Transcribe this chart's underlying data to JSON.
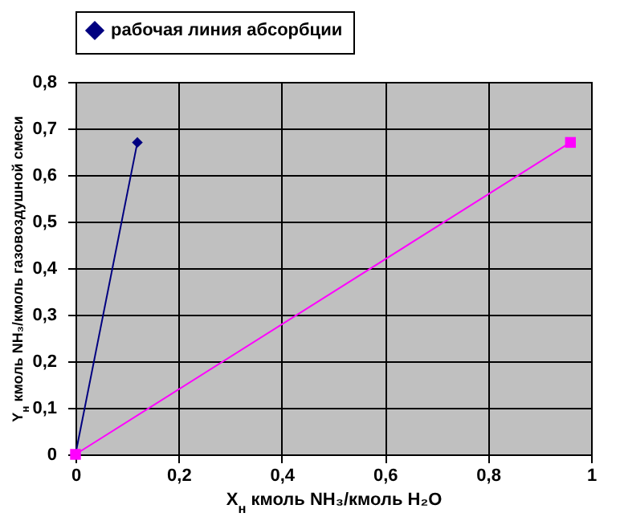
{
  "chart_data": {
    "type": "line",
    "xlabel": "X$_{н}$ кмоль NH₃/кмоль H₂O",
    "ylabel": "Y$_{н}$ кмоль NH₃/кмоль газовоздушной смеси",
    "series": [
      {
        "name": "рабочая линия абсорбции",
        "color": "#000080",
        "x": [
          0,
          0.12
        ],
        "values": [
          0,
          0.67
        ],
        "marker": "diamond"
      },
      {
        "color": "#ff00ff",
        "x": [
          0,
          0.96
        ],
        "values": [
          0,
          0.67
        ],
        "marker": "square"
      }
    ],
    "xlim": [
      0,
      1
    ],
    "xticks": [
      0,
      {
        "value": 0.2,
        "label": "0,2"
      },
      {
        "value": 0.4,
        "label": "0,4"
      },
      {
        "value": 0.6,
        "label": "0,6"
      },
      {
        "value": 0.8,
        "label": "0,8"
      },
      1
    ],
    "ylim": [
      0,
      0.8
    ],
    "yticks": [
      0,
      {
        "value": 0.1,
        "label": "0,1"
      },
      {
        "value": 0.2,
        "label": "0,2"
      },
      {
        "value": 0.3,
        "label": "0,3"
      },
      {
        "value": 0.4,
        "label": "0,4"
      },
      {
        "value": 0.5,
        "label": "0,5"
      },
      {
        "value": 0.6,
        "label": "0,6"
      },
      {
        "value": 0.7,
        "label": "0,7"
      },
      {
        "value": 0.8,
        "label": "0,8"
      }
    ],
    "grid": true,
    "legend": "top",
    "line_style": "solid"
  }
}
